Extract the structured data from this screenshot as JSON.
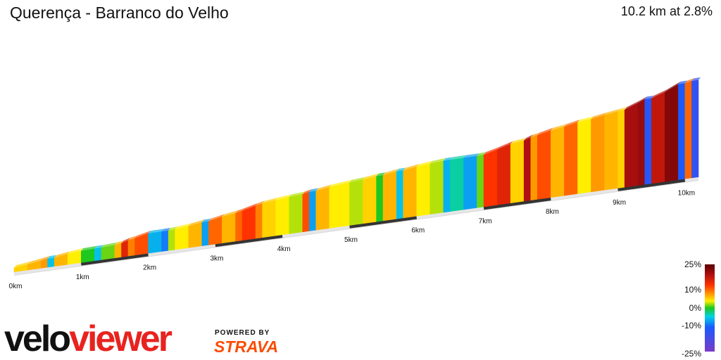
{
  "header": {
    "title": "Querença - Barranco do Velho",
    "summary": "10.2 km at 2.8%"
  },
  "branding": {
    "logo_part1": "velo",
    "logo_part2": "viewer",
    "powered_by": "POWERED BY",
    "strava": "STRAVA"
  },
  "colors": {
    "logo_red": "#e8231f",
    "strava_orange": "#fc4c02",
    "axis_dark": "#333333"
  },
  "chart_data": {
    "type": "area",
    "distance_km": 10.2,
    "avg_gradient_pct": 2.8,
    "x_ticks": [
      "0km",
      "1km",
      "2km",
      "3km",
      "4km",
      "5km",
      "6km",
      "7km",
      "8km",
      "9km",
      "10km"
    ],
    "gradient_scale": {
      "labels": [
        "25%",
        "10%",
        "0%",
        "-10%",
        "-25%"
      ],
      "values": [
        25,
        10,
        0,
        -10,
        -25
      ],
      "stops": [
        {
          "value": 25,
          "color": "#5a0000"
        },
        {
          "value": 15,
          "color": "#b01010"
        },
        {
          "value": 10,
          "color": "#ff3300"
        },
        {
          "value": 6,
          "color": "#ff9900"
        },
        {
          "value": 3,
          "color": "#ffee00"
        },
        {
          "value": 0,
          "color": "#1ec81e"
        },
        {
          "value": -3,
          "color": "#00d2e6"
        },
        {
          "value": -10,
          "color": "#1a5aff"
        },
        {
          "value": -25,
          "color": "#7a3cc8"
        }
      ]
    },
    "profile": [
      {
        "d": 0.0,
        "g": 4
      },
      {
        "d": 0.2,
        "g": 5
      },
      {
        "d": 0.4,
        "g": 6
      },
      {
        "d": 0.5,
        "g": -4
      },
      {
        "d": 0.6,
        "g": 5
      },
      {
        "d": 0.8,
        "g": 3
      },
      {
        "d": 1.0,
        "g": 0
      },
      {
        "d": 1.2,
        "g": -4
      },
      {
        "d": 1.3,
        "g": 1
      },
      {
        "d": 1.5,
        "g": 5
      },
      {
        "d": 1.6,
        "g": 12
      },
      {
        "d": 1.7,
        "g": 7
      },
      {
        "d": 1.8,
        "g": 9
      },
      {
        "d": 2.0,
        "g": -5
      },
      {
        "d": 2.2,
        "g": -8
      },
      {
        "d": 2.3,
        "g": 2
      },
      {
        "d": 2.4,
        "g": 3
      },
      {
        "d": 2.6,
        "g": 5
      },
      {
        "d": 2.8,
        "g": -6
      },
      {
        "d": 2.9,
        "g": 8
      },
      {
        "d": 3.1,
        "g": 5
      },
      {
        "d": 3.3,
        "g": 8
      },
      {
        "d": 3.4,
        "g": 10
      },
      {
        "d": 3.6,
        "g": 7
      },
      {
        "d": 3.7,
        "g": 4
      },
      {
        "d": 3.9,
        "g": 3
      },
      {
        "d": 4.1,
        "g": 2
      },
      {
        "d": 4.3,
        "g": 9
      },
      {
        "d": 4.4,
        "g": -6
      },
      {
        "d": 4.5,
        "g": 5
      },
      {
        "d": 4.7,
        "g": 3
      },
      {
        "d": 5.0,
        "g": 2
      },
      {
        "d": 5.2,
        "g": 4
      },
      {
        "d": 5.4,
        "g": 0
      },
      {
        "d": 5.5,
        "g": 5
      },
      {
        "d": 5.7,
        "g": -4
      },
      {
        "d": 5.8,
        "g": 5
      },
      {
        "d": 6.0,
        "g": 3
      },
      {
        "d": 6.2,
        "g": 2
      },
      {
        "d": 6.4,
        "g": -5
      },
      {
        "d": 6.5,
        "g": -2
      },
      {
        "d": 6.7,
        "g": -6
      },
      {
        "d": 6.9,
        "g": 1
      },
      {
        "d": 7.0,
        "g": 10
      },
      {
        "d": 7.2,
        "g": 12
      },
      {
        "d": 7.4,
        "g": 4
      },
      {
        "d": 7.6,
        "g": 15
      },
      {
        "d": 7.7,
        "g": 6
      },
      {
        "d": 7.8,
        "g": 9
      },
      {
        "d": 8.0,
        "g": 5
      },
      {
        "d": 8.2,
        "g": 8
      },
      {
        "d": 8.4,
        "g": 3
      },
      {
        "d": 8.6,
        "g": 6
      },
      {
        "d": 8.8,
        "g": 5
      },
      {
        "d": 9.0,
        "g": 4
      },
      {
        "d": 9.1,
        "g": 16
      },
      {
        "d": 9.3,
        "g": 18
      },
      {
        "d": 9.4,
        "g": -12
      },
      {
        "d": 9.5,
        "g": 14
      },
      {
        "d": 9.7,
        "g": 20
      },
      {
        "d": 9.9,
        "g": -10
      },
      {
        "d": 10.0,
        "g": 8
      },
      {
        "d": 10.1,
        "g": -14
      }
    ]
  }
}
